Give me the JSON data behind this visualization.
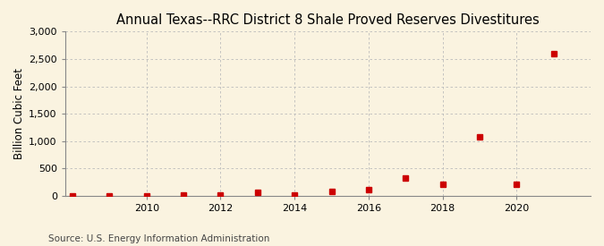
{
  "title": "Annual Texas--RRC District 8 Shale Proved Reserves Divestitures",
  "ylabel": "Billion Cubic Feet",
  "source": "Source: U.S. Energy Information Administration",
  "years": [
    2008,
    2009,
    2010,
    2011,
    2012,
    2013,
    2014,
    2015,
    2016,
    2017,
    2018,
    2019,
    2020,
    2021
  ],
  "values": [
    2,
    5,
    5,
    10,
    10,
    70,
    20,
    85,
    115,
    320,
    210,
    1085,
    210,
    2600
  ],
  "marker_color": "#cc0000",
  "marker_size": 4,
  "background_color": "#faf3e0",
  "plot_background_color": "#faf3e0",
  "grid_color": "#bbbbbb",
  "ylim": [
    0,
    3000
  ],
  "yticks": [
    0,
    500,
    1000,
    1500,
    2000,
    2500,
    3000
  ],
  "xtick_years": [
    2010,
    2012,
    2014,
    2016,
    2018,
    2020
  ],
  "xlim_left": 2007.8,
  "xlim_right": 2022.0,
  "title_fontsize": 10.5,
  "label_fontsize": 8.5,
  "tick_fontsize": 8,
  "source_fontsize": 7.5
}
